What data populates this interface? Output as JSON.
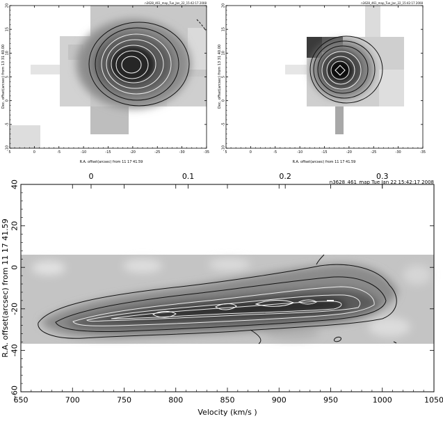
{
  "chart_data": [
    {
      "type": "heatmap",
      "title": "n3628_461_map_Tue_Jan_22_15:42:17 2008",
      "xlabel": "R.A. offset(arcsec) from 11 17 41.59",
      "ylabel": "Dec. offset(arcsec) from 13 31 40.00",
      "xlim": [
        5,
        -35
      ],
      "ylim": [
        -10,
        20
      ],
      "xticks": [
        5,
        0,
        -5,
        -10,
        -15,
        -20,
        -25,
        -30,
        -35
      ],
      "yticks": [
        -10,
        -5,
        0,
        5,
        10,
        15,
        20
      ],
      "peak": [
        -18,
        7.5
      ],
      "grid": false
    },
    {
      "type": "heatmap",
      "title": "n3628_461_map_Tue_Jan_22_15:42:17 2008",
      "xlabel": "R.A. offset(arcsec) from 11 17 41.59",
      "ylabel": "Dec. offset(arcsec) from 13 31 40.00",
      "xlim": [
        5,
        -35
      ],
      "ylim": [
        -10,
        20
      ],
      "xticks": [
        5,
        0,
        -5,
        -10,
        -15,
        -20,
        -25,
        -30,
        -35
      ],
      "yticks": [
        -10,
        -5,
        0,
        5,
        10,
        15,
        20
      ],
      "peak": [
        -17.5,
        6
      ],
      "grid": false
    },
    {
      "type": "heatmap",
      "title": "n3628_461_map Tue Jan 22 15:42:17 2008",
      "xlabel": "Velocity   (km/s   )",
      "ylabel": "R.A. offset(arcsec) from 11 17 41.59",
      "xlim": [
        650,
        1050
      ],
      "ylim": [
        -60,
        40
      ],
      "xticks": [
        650,
        700,
        750,
        800,
        850,
        900,
        950,
        1000,
        1050
      ],
      "yticks": [
        -60,
        -40,
        -20,
        0,
        20,
        40
      ],
      "top_ticks": [
        "0",
        "0.1",
        "0.2",
        "0.3"
      ],
      "ridge": [
        [
          665,
          -30
        ],
        [
          700,
          -28
        ],
        [
          750,
          -25
        ],
        [
          800,
          -22
        ],
        [
          850,
          -20
        ],
        [
          900,
          -18
        ],
        [
          950,
          -16
        ],
        [
          1000,
          -15
        ],
        [
          1015,
          -22
        ]
      ],
      "grid": false
    }
  ]
}
